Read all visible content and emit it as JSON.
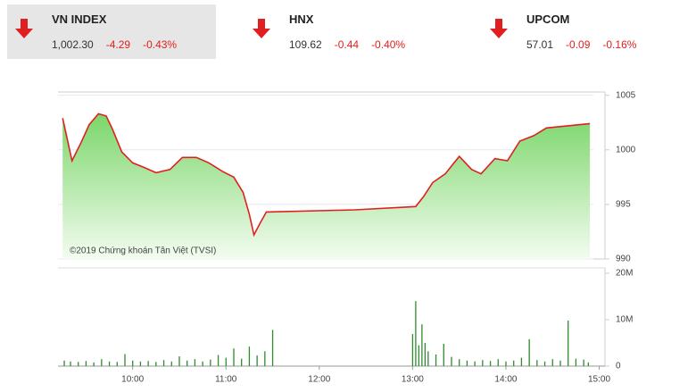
{
  "header": {
    "indices": [
      {
        "name": "VN INDEX",
        "value": "1,002.30",
        "change": "-4.29",
        "percent": "-0.43%"
      },
      {
        "name": "HNX",
        "value": "109.62",
        "change": "-0.44",
        "percent": "-0.40%"
      },
      {
        "name": "UPCOM",
        "value": "57.01",
        "change": "-0.09",
        "percent": "-0.16%"
      }
    ]
  },
  "chart_data": [
    {
      "type": "area",
      "annotation": "©2019 Chứng khoán Tân Việt (TVSI)",
      "color": "#e02020",
      "x": [
        555,
        561,
        567,
        572,
        578,
        583,
        587,
        593,
        600,
        607,
        615,
        624,
        632,
        641,
        649,
        658,
        665,
        671,
        675,
        678,
        682,
        686,
        743,
        782,
        787,
        793,
        801,
        810,
        818,
        824,
        833,
        841,
        849,
        858,
        866,
        894
      ],
      "values": [
        1002.9,
        999.0,
        1000.7,
        1002.3,
        1003.3,
        1003.1,
        1001.9,
        999.8,
        998.8,
        998.4,
        997.9,
        998.2,
        999.3,
        999.3,
        998.8,
        998.0,
        997.5,
        996.1,
        994.1,
        992.2,
        993.3,
        994.3,
        994.5,
        994.8,
        995.7,
        997.0,
        997.8,
        999.4,
        998.2,
        997.8,
        999.2,
        999.0,
        1000.8,
        1001.3,
        1002.0,
        1002.4
      ],
      "xlim": [
        552,
        902
      ],
      "ylim": [
        990,
        1005.3
      ],
      "yticks": [
        990,
        995,
        1000,
        1005
      ],
      "grid": true
    },
    {
      "type": "bar",
      "color": "#2e8b2e",
      "x": [
        556,
        560,
        565,
        570,
        575,
        580,
        585,
        590,
        595,
        600,
        605,
        610,
        615,
        620,
        625,
        630,
        635,
        640,
        645,
        650,
        655,
        660,
        665,
        670,
        675,
        680,
        685,
        690,
        780,
        782,
        784,
        786,
        788,
        790,
        795,
        800,
        805,
        810,
        815,
        820,
        825,
        830,
        835,
        840,
        845,
        850,
        855,
        860,
        865,
        870,
        875,
        880,
        885,
        890,
        893
      ],
      "values": [
        1.2,
        1.0,
        0.9,
        1.1,
        0.8,
        1.5,
        1.0,
        0.9,
        2.6,
        1.2,
        1.0,
        1.1,
        0.9,
        1.3,
        1.0,
        2.1,
        1.2,
        1.5,
        1.0,
        1.4,
        2.4,
        1.8,
        3.8,
        1.6,
        4.2,
        2.3,
        3.2,
        7.8,
        6.9,
        14.0,
        4.5,
        9.0,
        5.0,
        3.2,
        2.5,
        4.8,
        2.0,
        1.5,
        1.2,
        1.0,
        1.3,
        1.1,
        1.5,
        1.0,
        1.2,
        1.8,
        5.8,
        1.3,
        1.0,
        1.5,
        1.2,
        9.8,
        1.6,
        1.4,
        0.8
      ],
      "xlim": [
        552,
        902
      ],
      "xticks": [
        {
          "value": 600,
          "label": "10:00"
        },
        {
          "value": 660,
          "label": "11:00"
        },
        {
          "value": 720,
          "label": "12:00"
        },
        {
          "value": 780,
          "label": "13:00"
        },
        {
          "value": 840,
          "label": "14:00"
        },
        {
          "value": 900,
          "label": "15:00"
        }
      ],
      "ylim": [
        0,
        20
      ],
      "yticks": [
        0,
        {
          "value": 10,
          "label": "10M"
        },
        {
          "value": 20,
          "label": "20M"
        }
      ],
      "grid": false
    }
  ]
}
